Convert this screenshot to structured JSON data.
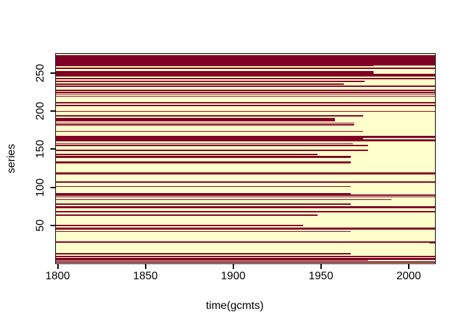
{
  "figure": {
    "kind": "R base-graphics image plot",
    "background": "#ffffff",
    "xlabel": "time(gcmts)",
    "ylabel": "series"
  },
  "chart_data": {
    "type": "heatmap",
    "title": "",
    "xlabel": "time(gcmts)",
    "ylabel": "series",
    "xlim": [
      1799,
      2015
    ],
    "ylim": [
      0,
      275
    ],
    "x_ticks": [
      1800,
      1850,
      1900,
      1950,
      2000
    ],
    "y_ticks": [
      50,
      100,
      150,
      200,
      250
    ],
    "grid": false,
    "legend_position": "none",
    "colors": {
      "present": "#800026",
      "absent": "#FFFFCC",
      "axis": "#000000"
    },
    "value_legend": {
      "present": "series has data (maroon)",
      "absent": "no data (cream)"
    },
    "stripes": [
      {
        "lo": 260.0,
        "hi": 273.5,
        "to": 2015
      },
      {
        "lo": 258.3,
        "hi": 259.6,
        "to": 1980
      },
      {
        "lo": 255.2,
        "hi": 257.4,
        "to": 2015
      },
      {
        "lo": 248.4,
        "hi": 252.0,
        "to": 1980
      },
      {
        "lo": 245.3,
        "hi": 248.4,
        "to": 2015
      },
      {
        "lo": 241.3,
        "hi": 243.0,
        "to": 2015
      },
      {
        "lo": 238.1,
        "hi": 239.5,
        "to": 1975
      },
      {
        "lo": 234.5,
        "hi": 235.9,
        "to": 1963
      },
      {
        "lo": 231.8,
        "hi": 233.2,
        "to": 2015
      },
      {
        "lo": 226.5,
        "hi": 227.8,
        "to": 2015
      },
      {
        "lo": 223.8,
        "hi": 225.1,
        "to": 2015
      },
      {
        "lo": 221.1,
        "hi": 222.4,
        "to": 2015
      },
      {
        "lo": 218.4,
        "hi": 219.7,
        "to": 2015
      },
      {
        "lo": 210.3,
        "hi": 211.7,
        "to": 2015
      },
      {
        "lo": 206.3,
        "hi": 207.7,
        "to": 2015
      },
      {
        "lo": 199.1,
        "hi": 200.4,
        "to": 2015
      },
      {
        "lo": 192.8,
        "hi": 194.2,
        "to": 1974
      },
      {
        "lo": 186.1,
        "hi": 190.6,
        "to": 1958
      },
      {
        "lo": 183.4,
        "hi": 184.7,
        "to": 1969
      },
      {
        "lo": 181.2,
        "hi": 182.5,
        "to": 1969
      },
      {
        "lo": 172.6,
        "hi": 174.0,
        "to": 1974
      },
      {
        "lo": 165.0,
        "hi": 167.7,
        "to": 2015
      },
      {
        "lo": 162.8,
        "hi": 165.0,
        "to": 1974
      },
      {
        "lo": 160.5,
        "hi": 162.8,
        "to": 2015
      },
      {
        "lo": 156.5,
        "hi": 157.8,
        "to": 1968
      },
      {
        "lo": 153.8,
        "hi": 155.2,
        "to": 1977
      },
      {
        "lo": 147.5,
        "hi": 148.9,
        "to": 1977
      },
      {
        "lo": 142.2,
        "hi": 143.5,
        "to": 1948
      },
      {
        "lo": 138.6,
        "hi": 140.8,
        "to": 1967
      },
      {
        "lo": 131.4,
        "hi": 133.6,
        "to": 1967
      },
      {
        "lo": 117.0,
        "hi": 119.3,
        "to": 2015
      },
      {
        "lo": 105.4,
        "hi": 107.6,
        "to": 2015
      },
      {
        "lo": 100.0,
        "hi": 101.3,
        "to": 1967
      },
      {
        "lo": 90.6,
        "hi": 92.4,
        "to": 1967
      },
      {
        "lo": 88.8,
        "hi": 90.1,
        "to": 2015
      },
      {
        "lo": 86.5,
        "hi": 87.9,
        "to": 2015
      },
      {
        "lo": 83.0,
        "hi": 84.3,
        "to": 1990
      },
      {
        "lo": 77.1,
        "hi": 78.9,
        "to": 1967
      },
      {
        "lo": 72.2,
        "hi": 75.3,
        "to": 2015
      },
      {
        "lo": 66.8,
        "hi": 69.1,
        "to": 2015
      },
      {
        "lo": 62.8,
        "hi": 64.6,
        "to": 1948
      },
      {
        "lo": 49.3,
        "hi": 51.1,
        "to": 1940
      },
      {
        "lo": 44.4,
        "hi": 47.5,
        "to": 2015
      },
      {
        "lo": 41.7,
        "hi": 43.0,
        "to": 1967
      },
      {
        "lo": 27.4,
        "hi": 28.7,
        "to": 2015
      },
      {
        "lo": 26.2,
        "hi": 27.1,
        "from": 2012,
        "to": 2015
      },
      {
        "lo": 12.1,
        "hi": 13.5,
        "to": 1967
      },
      {
        "lo": 8.1,
        "hi": 9.9,
        "to": 2015
      },
      {
        "lo": 4.9,
        "hi": 7.2,
        "to": 2015
      },
      {
        "lo": 3.6,
        "hi": 4.9,
        "to": 1977
      },
      {
        "lo": 0.9,
        "hi": 3.1,
        "to": 2015
      }
    ]
  }
}
